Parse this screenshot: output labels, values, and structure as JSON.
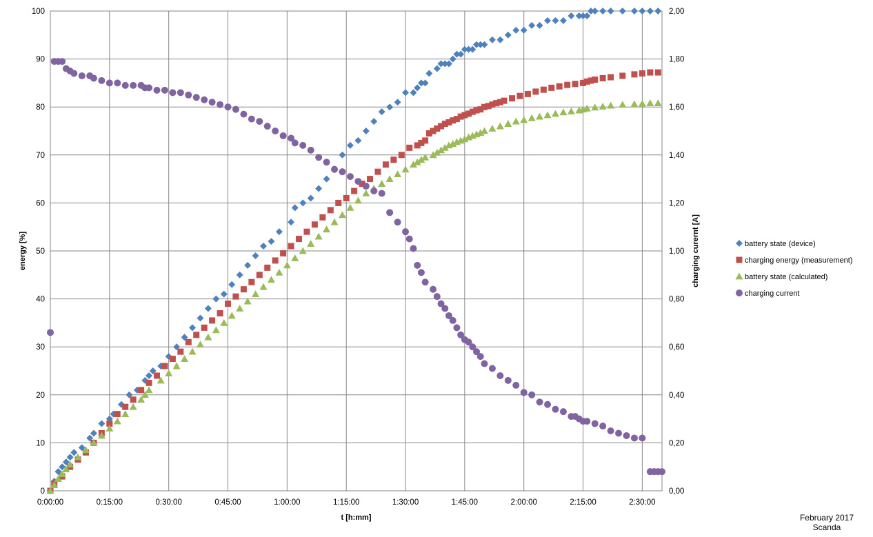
{
  "footnote": {
    "line1": "February 2017",
    "line2": "Scanda"
  },
  "chart_data": {
    "type": "scatter",
    "xlabel": "t [h:mm]",
    "ylabel": "energy [%]",
    "y2label": "charging curernt [A]",
    "x_unit": "minutes",
    "xlim": [
      0,
      155
    ],
    "x_ticks": [
      0,
      15,
      30,
      45,
      60,
      75,
      90,
      105,
      120,
      135,
      150
    ],
    "x_tick_labels": [
      "0:00:00",
      "0:15:00",
      "0:30:00",
      "0:45:00",
      "1:00:00",
      "1:15:00",
      "1:30:00",
      "1:45:00",
      "2:00:00",
      "2:15:00",
      "2:30:00"
    ],
    "ylim": [
      0,
      100
    ],
    "y_ticks": [
      0,
      10,
      20,
      30,
      40,
      50,
      60,
      70,
      80,
      90,
      100
    ],
    "y_tick_labels": [
      "0",
      "10",
      "20",
      "30",
      "40",
      "50",
      "60",
      "70",
      "80",
      "90",
      "100"
    ],
    "y2lim": [
      0,
      2.0
    ],
    "y2_ticks": [
      0,
      0.2,
      0.4,
      0.6,
      0.8,
      1.0,
      1.2,
      1.4,
      1.6,
      1.8,
      2.0
    ],
    "y2_tick_labels": [
      "0,00",
      "0,20",
      "0,40",
      "0,60",
      "0,80",
      "1,00",
      "1,20",
      "1,40",
      "1,60",
      "1,80",
      "2,00"
    ],
    "grid": true,
    "legend_position": "right",
    "series": [
      {
        "name": "battery state (device)",
        "color": "#4f81bd",
        "marker": "diamond",
        "axis": "left",
        "x": [
          0,
          1,
          2,
          3,
          4,
          5,
          6,
          8,
          10,
          11,
          13,
          15,
          16,
          18,
          20,
          22,
          24,
          25,
          26,
          28,
          30,
          32,
          34,
          36,
          38,
          40,
          42,
          44,
          46,
          48,
          50,
          52,
          54,
          56,
          58,
          61,
          62,
          64,
          66,
          68,
          70,
          72,
          74,
          76,
          78,
          80,
          82,
          84,
          86,
          88,
          90,
          92,
          93,
          94,
          95,
          96,
          98,
          99,
          100,
          101,
          102,
          103,
          104,
          105,
          106,
          107,
          108,
          109,
          110,
          112,
          114,
          116,
          118,
          120,
          122,
          124,
          126,
          128,
          130,
          132,
          134,
          135,
          136,
          137,
          138,
          140,
          142,
          145,
          148,
          150,
          152,
          154
        ],
        "y": [
          0,
          2,
          4,
          5,
          6,
          7,
          8,
          9,
          11,
          12,
          14,
          15,
          16,
          18,
          20,
          21,
          23,
          24,
          25,
          26,
          28,
          30,
          32,
          34,
          36,
          38,
          40,
          41,
          43,
          45,
          47,
          49,
          51,
          52,
          54,
          56,
          59,
          60,
          61,
          63,
          65,
          67,
          70,
          72,
          73,
          75,
          77,
          79,
          80,
          81,
          83,
          83,
          84,
          85,
          85,
          87,
          88,
          89,
          89,
          89,
          90,
          91,
          91,
          92,
          92,
          92,
          93,
          93,
          93,
          94,
          94,
          95,
          96,
          96,
          97,
          97,
          98,
          98,
          98,
          99,
          99,
          99,
          99,
          100,
          100,
          100,
          100,
          100,
          100,
          100,
          100,
          100
        ]
      },
      {
        "name": "charging energy (measurement)",
        "color": "#c0504d",
        "marker": "square",
        "axis": "left",
        "x": [
          0,
          1,
          3,
          5,
          7,
          9,
          11,
          13,
          15,
          17,
          19,
          21,
          23,
          25,
          27,
          29,
          31,
          33,
          35,
          37,
          39,
          41,
          43,
          45,
          47,
          49,
          51,
          53,
          55,
          57,
          59,
          61,
          63,
          65,
          67,
          69,
          71,
          73,
          75,
          77,
          79,
          81,
          83,
          85,
          87,
          89,
          91,
          93,
          94,
          95,
          96,
          97,
          98,
          99,
          100,
          101,
          102,
          103,
          104,
          105,
          106,
          107,
          108,
          109,
          110,
          111,
          112,
          113,
          114,
          115,
          117,
          119,
          121,
          123,
          125,
          127,
          129,
          131,
          133,
          135,
          136,
          137,
          138,
          140,
          142,
          145,
          148,
          150,
          152,
          154
        ],
        "y": [
          0,
          1.5,
          3,
          5,
          6.5,
          8,
          10,
          12,
          14,
          16,
          17.5,
          19,
          21,
          22.5,
          24,
          26,
          27.5,
          29,
          31,
          32.5,
          34,
          35.5,
          37,
          39,
          40.5,
          42,
          43.5,
          45,
          46.5,
          48,
          49.5,
          51,
          52.5,
          54,
          55.5,
          57,
          58.5,
          60,
          61,
          62.5,
          64,
          65,
          66.5,
          68,
          69,
          70,
          71.5,
          72,
          72.5,
          73,
          74.5,
          75,
          75.5,
          76,
          76.5,
          76.8,
          77.2,
          77.5,
          78,
          78.3,
          78.6,
          79,
          79.3,
          79.5,
          80,
          80.2,
          80.5,
          80.8,
          81,
          81.3,
          81.8,
          82.3,
          82.7,
          83.2,
          83.6,
          84,
          84.3,
          84.6,
          84.8,
          85,
          85.3,
          85.5,
          85.7,
          86,
          86.2,
          86.5,
          86.8,
          87,
          87.2,
          87.2
        ]
      },
      {
        "name": "battery state (calculated)",
        "color": "#9bbb59",
        "marker": "triangle",
        "axis": "left",
        "x": [
          0,
          1,
          2,
          3,
          4,
          5,
          7,
          9,
          11,
          13,
          15,
          17,
          19,
          21,
          23,
          24,
          25,
          28,
          30,
          32,
          34,
          36,
          38,
          40,
          42,
          44,
          46,
          48,
          50,
          52,
          54,
          56,
          58,
          60,
          62,
          64,
          66,
          68,
          70,
          72,
          74,
          76,
          78,
          80,
          82,
          84,
          86,
          88,
          90,
          92,
          93,
          94,
          95,
          97,
          98,
          99,
          100,
          101,
          102,
          103,
          104,
          105,
          106,
          107,
          108,
          109,
          110,
          112,
          114,
          116,
          118,
          120,
          122,
          124,
          126,
          128,
          130,
          132,
          134,
          135,
          136,
          138,
          140,
          142,
          145,
          148,
          150,
          152,
          154
        ],
        "y": [
          0,
          1.2,
          2.5,
          3.5,
          4.5,
          5.5,
          7,
          8.5,
          10,
          11.5,
          13,
          14.5,
          16,
          17.5,
          19,
          20,
          21,
          23,
          24.5,
          26,
          27.5,
          29,
          30.5,
          32,
          33.5,
          35,
          36.5,
          38,
          39.5,
          41,
          42.5,
          44,
          45.5,
          47,
          48.5,
          50,
          51.5,
          53,
          54.5,
          56,
          57.5,
          59,
          60.5,
          62,
          63,
          64,
          65,
          66,
          67,
          68,
          68.5,
          69,
          69.5,
          70,
          70.5,
          71,
          71.5,
          72,
          72.3,
          72.7,
          73,
          73.3,
          73.7,
          74,
          74.3,
          74.6,
          75,
          75.5,
          76,
          76.5,
          77,
          77.3,
          77.7,
          78,
          78.3,
          78.6,
          78.9,
          79.1,
          79.3,
          79.5,
          79.7,
          79.9,
          80.1,
          80.3,
          80.5,
          80.6,
          80.7,
          80.8,
          80.8
        ]
      },
      {
        "name": "charging current",
        "color": "#8064a2",
        "marker": "circle",
        "axis": "right",
        "x": [
          0,
          1,
          2,
          3,
          4,
          5,
          6,
          8,
          10,
          11,
          13,
          15,
          17,
          19,
          21,
          23,
          24,
          25,
          27,
          29,
          31,
          33,
          35,
          37,
          39,
          41,
          43,
          45,
          47,
          49,
          51,
          53,
          55,
          57,
          59,
          61,
          62,
          64,
          66,
          68,
          70,
          72,
          74,
          76,
          78,
          80,
          82,
          84,
          86,
          88,
          90,
          91,
          92,
          93,
          94,
          95,
          97,
          98,
          99,
          100,
          101,
          102,
          103,
          104,
          105,
          106,
          107,
          108,
          109,
          110,
          112,
          114,
          116,
          118,
          120,
          122,
          124,
          126,
          128,
          130,
          132,
          133,
          134,
          135,
          136,
          138,
          140,
          142,
          144,
          146,
          148,
          150,
          152,
          153,
          154,
          155
        ],
        "y": [
          0.66,
          1.79,
          1.79,
          1.79,
          1.76,
          1.75,
          1.74,
          1.73,
          1.73,
          1.72,
          1.71,
          1.7,
          1.7,
          1.69,
          1.69,
          1.69,
          1.68,
          1.68,
          1.67,
          1.67,
          1.66,
          1.66,
          1.65,
          1.64,
          1.63,
          1.62,
          1.61,
          1.6,
          1.59,
          1.57,
          1.55,
          1.54,
          1.52,
          1.5,
          1.48,
          1.47,
          1.45,
          1.44,
          1.42,
          1.39,
          1.37,
          1.34,
          1.33,
          1.31,
          1.29,
          1.27,
          1.25,
          1.24,
          1.16,
          1.12,
          1.08,
          1.05,
          1.01,
          0.94,
          0.91,
          0.87,
          0.84,
          0.81,
          0.78,
          0.76,
          0.73,
          0.71,
          0.68,
          0.65,
          0.63,
          0.62,
          0.6,
          0.58,
          0.56,
          0.53,
          0.51,
          0.48,
          0.46,
          0.44,
          0.41,
          0.4,
          0.37,
          0.36,
          0.34,
          0.33,
          0.31,
          0.31,
          0.3,
          0.29,
          0.29,
          0.28,
          0.27,
          0.25,
          0.24,
          0.23,
          0.22,
          0.22,
          0.08,
          0.08,
          0.08,
          0.08
        ]
      }
    ]
  }
}
